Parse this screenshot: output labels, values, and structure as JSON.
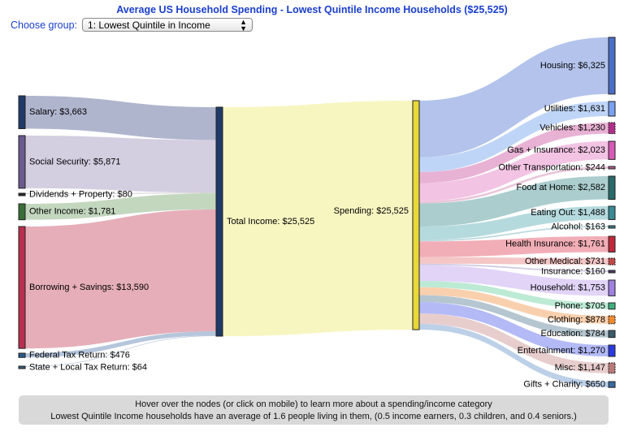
{
  "title": "Average US Household Spending - Lowest Quintile Income Households ($25,525)",
  "chooser": {
    "label": "Choose group:",
    "selected": "1: Lowest Quintile in Income"
  },
  "info": {
    "line1": "Hover over the nodes (or click on mobile) to learn more about a spending/income category",
    "line2": "Lowest Quintile Income households have an average of 1.6 people living in them, (0.5 income earners, 0.3 children, and 0.4 seniors.)"
  },
  "chart_data": {
    "type": "sankey",
    "total": 25525,
    "income_nodes": [
      {
        "label": "Salary: $3,663",
        "value": 3663,
        "color": "#1f3a68",
        "link_color": "#a2a8c6"
      },
      {
        "label": "Social Security: $5,871",
        "value": 5871,
        "color": "#6a5a8e",
        "link_color": "#ccc6dc"
      },
      {
        "label": "Dividends + Property: $80",
        "value": 80,
        "color": "#2b2b2b",
        "link_color": "#c6c6c6"
      },
      {
        "label": "Other Income: $1,781",
        "value": 1781,
        "color": "#3a6e38",
        "link_color": "#b8d0b4"
      },
      {
        "label": "Borrowing + Savings: $13,590",
        "value": 13590,
        "color": "#b83050",
        "link_color": "#e2a0ac"
      },
      {
        "label": "Federal Tax Return: $476",
        "value": 476,
        "color": "#2a5a8a",
        "link_color": "#a8bcd6"
      },
      {
        "label": "State + Local Tax Return: $64",
        "value": 64,
        "color": "#3a5a7a",
        "link_color": "#b0c0d6"
      }
    ],
    "total_income_node": {
      "label": "Total Income: $25,525",
      "value": 25525,
      "color": "#1f3a68"
    },
    "spending_node": {
      "label": "Spending: $25,525",
      "value": 25525,
      "color": "#e8d838"
    },
    "middle_link_color": "#f6f4b6",
    "spending_nodes": [
      {
        "label": "Housing: $6,325",
        "value": 6325,
        "color": "#4b6fc6",
        "link_color": "#a6b8e8"
      },
      {
        "label": "Utilities: $1,631",
        "value": 1631,
        "color": "#7aa0f0",
        "link_color": "#b4cef6"
      },
      {
        "label": "Vehicles: $1,230",
        "value": 1230,
        "color": "#b0308a",
        "link_color": "#e4a4cc"
      },
      {
        "label": "Gas + Insurance: $2,023",
        "value": 2023,
        "color": "#d65ab6",
        "link_color": "#f0b8de"
      },
      {
        "label": "Other Transportation: $244",
        "value": 244,
        "color": "#b05a8a",
        "link_color": "#e6bcd4"
      },
      {
        "label": "Food at Home: $2,582",
        "value": 2582,
        "color": "#2a6a6a",
        "link_color": "#9cc4c6"
      },
      {
        "label": "Eating Out: $1,488",
        "value": 1488,
        "color": "#3a8a94",
        "link_color": "#a8d4d8"
      },
      {
        "label": "Alcohol: $163",
        "value": 163,
        "color": "#3a7a84",
        "link_color": "#b0d4d8"
      },
      {
        "label": "Health Insurance: $1,761",
        "value": 1761,
        "color": "#c0283a",
        "link_color": "#f0a0aa"
      },
      {
        "label": "Other Medical: $731",
        "value": 731,
        "color": "#c04a4a",
        "link_color": "#f2bcbc"
      },
      {
        "label": "Insurance: $160",
        "value": 160,
        "color": "#4a3a6a",
        "link_color": "#c8c0dc"
      },
      {
        "label": "Household: $1,753",
        "value": 1753,
        "color": "#a080e0",
        "link_color": "#dcccf6"
      },
      {
        "label": "Phone: $705",
        "value": 705,
        "color": "#40b080",
        "link_color": "#b0e6cc"
      },
      {
        "label": "Clothing: $878",
        "value": 878,
        "color": "#f08a30",
        "link_color": "#f8c8a0"
      },
      {
        "label": "Education: $784",
        "value": 784,
        "color": "#3a5a6a",
        "link_color": "#a8bcc8"
      },
      {
        "label": "Entertainment: $1,270",
        "value": 1270,
        "color": "#2a3ae0",
        "link_color": "#a6aef4"
      },
      {
        "label": "Misc: $1,147",
        "value": 1147,
        "color": "#b87a7a",
        "link_color": "#e4c4c4"
      },
      {
        "label": "Gifts + Charity: $650",
        "value": 650,
        "color": "#3a6aa0",
        "link_color": "#b0c8e4"
      }
    ]
  }
}
